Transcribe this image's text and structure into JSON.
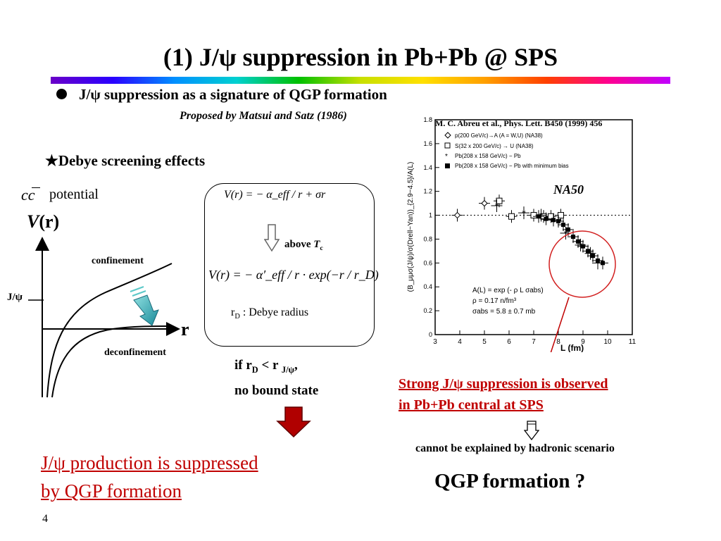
{
  "slide": {
    "title": "(1) J/ψ suppression in Pb+Pb @ SPS",
    "bullet": "J/ψ suppression as a signature  of QGP formation",
    "proposed": "Proposed by Matsui and Satz (1986)",
    "page_number": "4"
  },
  "left": {
    "debye_heading": "★Debye screening effects",
    "cc_symbol": "cc",
    "potential_word": "potential",
    "vr_V": "V",
    "vr_rest": "(r)",
    "confinement_label": "confinement",
    "jpsi_label": "J/ψ",
    "r_axis_label": "r",
    "deconfinement_label": "deconfinement"
  },
  "formulas": {
    "f1": "V(r) = − α_eff / r + σr",
    "above_prefix": "above ",
    "above_T": "T",
    "above_sub": "c",
    "f2": "V(r) = − α′_eff / r · exp(−r / r_D)",
    "rd_prefix": "r",
    "rd_sub": "D",
    "rd_text": " : Debye radius"
  },
  "condition": {
    "if_prefix": "if r",
    "if_sub1": "D",
    "if_mid": " < r ",
    "if_sub2": "J/ψ",
    "if_suffix": ",",
    "line2": "no bound state"
  },
  "conclusion": {
    "line1": "J/ψ production is suppressed ",
    "line2": "by QGP formation "
  },
  "plot": {
    "reference": "M. C. Abreu et al., Phys. Lett. B450 (1999) 456",
    "label": "NA50",
    "y_axis_label": "(B_μμσ(J/ψ)/σ(Drell−Yan))_{2.9−4.5}/A(L)",
    "x_axis_label": "L (fm)",
    "x_ticks": [
      "3",
      "4",
      "5",
      "6",
      "7",
      "8",
      "9",
      "10",
      "11"
    ],
    "y_ticks": [
      "0",
      "0.2",
      "0.4",
      "0.6",
      "0.8",
      "1",
      "1.2",
      "1.4",
      "1.6",
      "1.8"
    ],
    "legend": [
      "p(200 GeV/c)→A (A = W,U) (NA38)",
      "S(32 x 200 GeV/c) → U (NA38)",
      "Pb(208 x 158 GeV/c) − Pb",
      "Pb(208 x 158 GeV/c) − Pb with minimum bias"
    ],
    "fit_lines": [
      "A(L) = exp (- ρ L σabs)",
      "ρ = 0.17 n/fm³",
      "σabs = 5.8  ± 0.7 mb"
    ],
    "chart_data": {
      "type": "scatter",
      "xlabel": "L (fm)",
      "ylabel": "(B_μμσ(J/ψ)/σ(Drell−Yan))_{2.9−4.5}/A(L)",
      "xlim": [
        3,
        11
      ],
      "ylim": [
        0,
        1.8
      ],
      "grid": false,
      "series": [
        {
          "name": "p(200 GeV/c)→A (A = W,U) (NA38)",
          "marker": "open-diamond",
          "x": [
            3.9,
            5.0
          ],
          "y": [
            1.0,
            1.1
          ]
        },
        {
          "name": "S(32 x 200 GeV/c) → U (NA38)",
          "marker": "open-square",
          "x": [
            5.6,
            6.1,
            7.0,
            7.4,
            7.7,
            8.1
          ],
          "y": [
            1.12,
            0.99,
            1.0,
            0.99,
            0.99,
            1.0
          ]
        },
        {
          "name": "Pb(208 x 158 GeV/c) − Pb",
          "marker": "star",
          "x": [
            5.5,
            6.6,
            7.3,
            8.3,
            8.9,
            9.3,
            9.6
          ],
          "y": [
            1.08,
            1.02,
            1.0,
            0.85,
            0.75,
            0.68,
            0.6
          ]
        },
        {
          "name": "Pb(208 x 158 GeV/c) − Pb with minimum bias",
          "marker": "filled-square",
          "x": [
            7.2,
            7.5,
            7.8,
            8.0,
            8.2,
            8.4,
            8.6,
            8.8,
            9.0,
            9.2,
            9.4,
            9.6,
            9.8
          ],
          "y": [
            0.99,
            0.97,
            0.96,
            0.95,
            0.92,
            0.88,
            0.82,
            0.78,
            0.74,
            0.7,
            0.66,
            0.62,
            0.6
          ]
        }
      ],
      "reference_line": {
        "y": 1.0,
        "style": "dotted"
      }
    }
  },
  "right_text": {
    "strong_line1": "Strong J/ψ suppression is observed",
    "strong_line2": " in Pb+Pb central at SPS",
    "hadronic": "cannot be explained by hadronic scenario",
    "qgp_question": "QGP formation ?"
  },
  "colors": {
    "accent_red": "#c00000",
    "arrow_red": "#b00000",
    "arrow_teal": "#2ab0b0",
    "circle_red": "#d22020"
  }
}
